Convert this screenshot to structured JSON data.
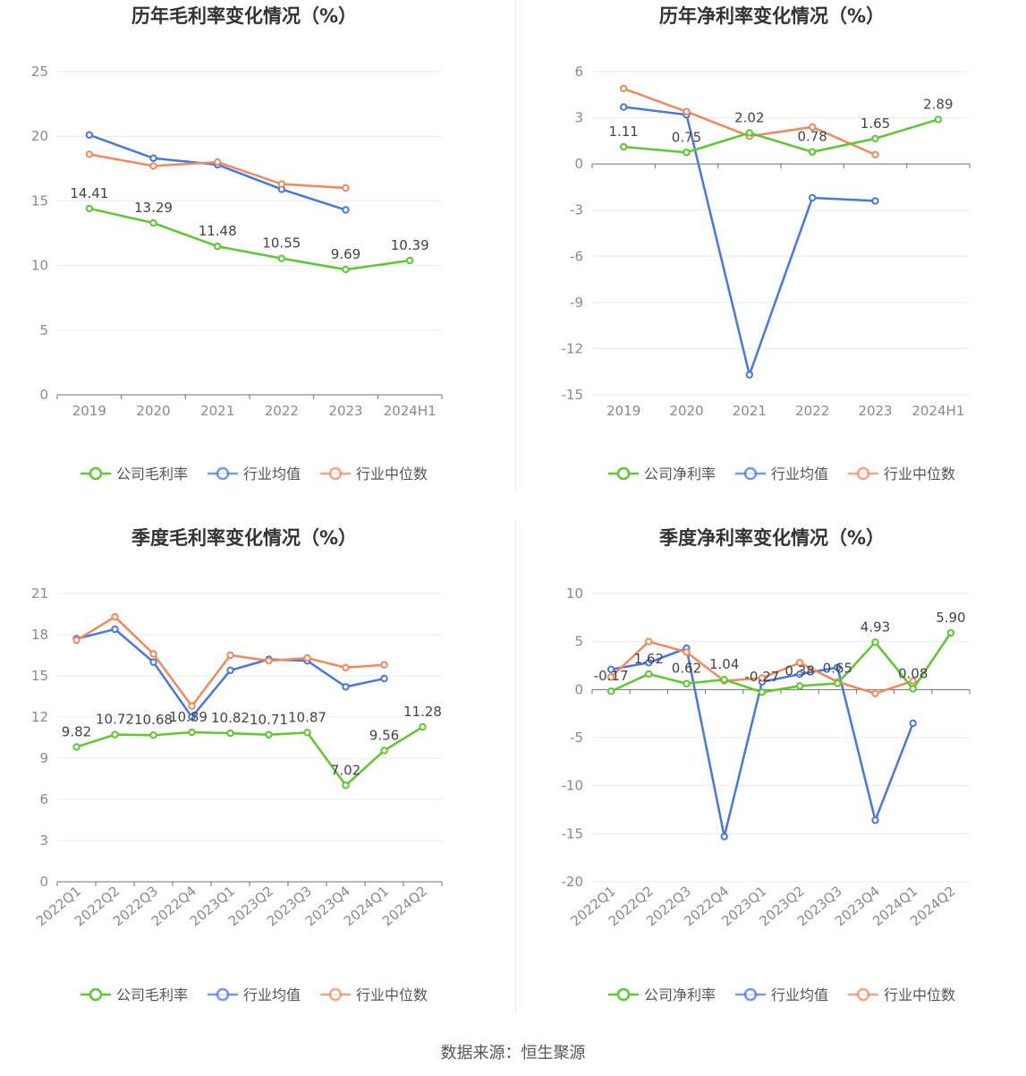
{
  "source": "数据来源：恒生聚源",
  "colors": {
    "company": "#5cc72e",
    "avg": "#4677e3",
    "median": "#f2885e"
  },
  "chart_data": [
    {
      "type": "line",
      "title": "历年毛利率变化情况（%）",
      "categories": [
        "2019",
        "2020",
        "2021",
        "2022",
        "2023",
        "2024H1"
      ],
      "ylim": [
        0,
        25
      ],
      "yticks": [
        0,
        5,
        10,
        15,
        20,
        25
      ],
      "series": [
        {
          "name": "公司毛利率",
          "key": "company",
          "values": [
            14.41,
            13.29,
            11.48,
            10.55,
            9.69,
            10.39
          ],
          "labels": [
            "14.41",
            "13.29",
            "11.48",
            "10.55",
            "9.69",
            "10.39"
          ]
        },
        {
          "name": "行业均值",
          "key": "avg",
          "values": [
            20.1,
            18.3,
            17.8,
            15.9,
            14.3,
            null
          ]
        },
        {
          "name": "行业中位数",
          "key": "median",
          "values": [
            18.6,
            17.7,
            18.0,
            16.3,
            16.0,
            null
          ]
        }
      ]
    },
    {
      "type": "line",
      "title": "历年净利率变化情况（%）",
      "categories": [
        "2019",
        "2020",
        "2021",
        "2022",
        "2023",
        "2024H1"
      ],
      "ylim": [
        -15,
        6
      ],
      "yticks": [
        -15,
        -12,
        -9,
        -6,
        -3,
        0,
        3,
        6
      ],
      "series": [
        {
          "name": "公司净利率",
          "key": "company",
          "values": [
            1.11,
            0.75,
            2.02,
            0.78,
            1.65,
            2.89
          ],
          "labels": [
            "1.11",
            "0.75",
            "2.02",
            "0.78",
            "1.65",
            "2.89"
          ]
        },
        {
          "name": "行业均值",
          "key": "avg",
          "values": [
            3.7,
            3.2,
            -13.7,
            -2.2,
            -2.4,
            null
          ]
        },
        {
          "name": "行业中位数",
          "key": "median",
          "values": [
            4.9,
            3.4,
            1.8,
            2.4,
            0.6,
            null
          ]
        }
      ]
    },
    {
      "type": "line",
      "title": "季度毛利率变化情况（%）",
      "categories": [
        "2022Q1",
        "2022Q2",
        "2022Q3",
        "2022Q4",
        "2023Q1",
        "2023Q2",
        "2023Q3",
        "2023Q4",
        "2024Q1",
        "2024Q2"
      ],
      "ylim": [
        0,
        21
      ],
      "yticks": [
        0,
        3,
        6,
        9,
        12,
        15,
        18,
        21
      ],
      "series": [
        {
          "name": "公司毛利率",
          "key": "company",
          "values": [
            9.82,
            10.72,
            10.68,
            10.89,
            10.82,
            10.71,
            10.87,
            7.02,
            9.56,
            11.28
          ],
          "labels": [
            "9.82",
            "10.72",
            "10.68",
            "10.89",
            "10.82",
            "10.71",
            "10.87",
            "7.02",
            "9.56",
            "11.28"
          ]
        },
        {
          "name": "行业均值",
          "key": "avg",
          "values": [
            17.7,
            18.4,
            16.0,
            12.0,
            15.4,
            16.2,
            16.1,
            14.2,
            14.8,
            null
          ]
        },
        {
          "name": "行业中位数",
          "key": "median",
          "values": [
            17.6,
            19.3,
            16.6,
            12.8,
            16.5,
            16.1,
            16.3,
            15.6,
            15.8,
            null
          ]
        }
      ]
    },
    {
      "type": "line",
      "title": "季度净利率变化情况（%）",
      "categories": [
        "2022Q1",
        "2022Q2",
        "2022Q3",
        "2022Q4",
        "2023Q1",
        "2023Q2",
        "2023Q3",
        "2023Q4",
        "2024Q1",
        "2024Q2"
      ],
      "ylim": [
        -20,
        10
      ],
      "yticks": [
        -20,
        -15,
        -10,
        -5,
        0,
        5,
        10
      ],
      "series": [
        {
          "name": "公司净利率",
          "key": "company",
          "values": [
            -0.17,
            1.62,
            0.62,
            1.04,
            -0.27,
            0.38,
            0.65,
            4.93,
            0.08,
            5.9
          ],
          "labels": [
            "-0.17",
            "1.62",
            "0.62",
            "1.04",
            "-0.27",
            "0.38",
            "0.65",
            "4.93",
            "0.08",
            "5.90"
          ]
        },
        {
          "name": "行业均值",
          "key": "avg",
          "values": [
            2.1,
            2.8,
            4.3,
            -15.3,
            0.8,
            1.6,
            2.3,
            -13.6,
            -3.5,
            null
          ]
        },
        {
          "name": "行业中位数",
          "key": "median",
          "values": [
            1.3,
            5.0,
            3.9,
            0.9,
            1.2,
            2.8,
            0.8,
            -0.4,
            0.9,
            null
          ]
        }
      ]
    }
  ]
}
